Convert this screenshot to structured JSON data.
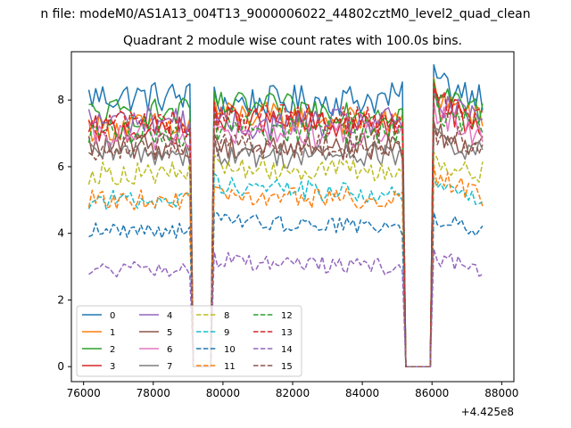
{
  "chart_data": {
    "type": "line",
    "suptitle": "n file: modeM0/AS1A13_004T13_9000006022_44802cztM0_level2_quad_clean",
    "title": "Quadrant 2 module wise count rates with 100.0s bins.",
    "xlabel": "",
    "ylabel": "",
    "x_offset_label": "+4.425e8",
    "xlim": [
      75650,
      88350
    ],
    "ylim": [
      -0.45,
      9.45
    ],
    "xticks": [
      76000,
      78000,
      80000,
      82000,
      84000,
      86000,
      88000
    ],
    "yticks": [
      0,
      2,
      4,
      6,
      8
    ],
    "grid": false,
    "legend": "lower-left",
    "bin_seconds": 100,
    "t_start": 76150,
    "t_end": 87450,
    "gaps": [
      [
        79150,
        79650
      ],
      [
        85250,
        85950
      ]
    ],
    "series": [
      {
        "name": "0",
        "style": "solid",
        "color": "#1f77b4",
        "level": 8.1,
        "after_gap1": 7.9,
        "after_gap2": 8.6
      },
      {
        "name": "1",
        "style": "solid",
        "color": "#ff7f0e",
        "level": 7.2,
        "after_gap1": 7.6,
        "after_gap2": 8.3
      },
      {
        "name": "2",
        "style": "solid",
        "color": "#2ca02c",
        "level": 7.6,
        "after_gap1": 7.8,
        "after_gap2": 8.2
      },
      {
        "name": "3",
        "style": "solid",
        "color": "#d62728",
        "level": 7.1,
        "after_gap1": 7.4,
        "after_gap2": 7.9
      },
      {
        "name": "4",
        "style": "solid",
        "color": "#9467bd",
        "level": 7.4,
        "after_gap1": 7.2,
        "after_gap2": 7.8
      },
      {
        "name": "5",
        "style": "solid",
        "color": "#8c564b",
        "level": 6.6,
        "after_gap1": 6.6,
        "after_gap2": 7.0
      },
      {
        "name": "6",
        "style": "solid",
        "color": "#e377c2",
        "level": 6.9,
        "after_gap1": 7.0,
        "after_gap2": 7.6
      },
      {
        "name": "7",
        "style": "solid",
        "color": "#7f7f7f",
        "level": 6.4,
        "after_gap1": 6.3,
        "after_gap2": 6.8
      },
      {
        "name": "8",
        "style": "dashed",
        "color": "#bcbd22",
        "level": 5.8,
        "after_gap1": 6.0,
        "after_gap2": 6.1
      },
      {
        "name": "9",
        "style": "dashed",
        "color": "#17becf",
        "level": 5.0,
        "after_gap1": 5.5,
        "after_gap2": 5.4
      },
      {
        "name": "10",
        "style": "dashed",
        "color": "#1f77b4",
        "level": 4.1,
        "after_gap1": 4.4,
        "after_gap2": 4.4
      },
      {
        "name": "11",
        "style": "dashed",
        "color": "#ff7f0e",
        "level": 5.0,
        "after_gap1": 5.1,
        "after_gap2": 5.8
      },
      {
        "name": "12",
        "style": "dashed",
        "color": "#2ca02c",
        "level": 7.0,
        "after_gap1": 7.2,
        "after_gap2": 7.8
      },
      {
        "name": "13",
        "style": "dashed",
        "color": "#d62728",
        "level": 7.3,
        "after_gap1": 7.5,
        "after_gap2": 8.1
      },
      {
        "name": "14",
        "style": "dashed",
        "color": "#9467bd",
        "level": 2.9,
        "after_gap1": 3.2,
        "after_gap2": 3.3
      },
      {
        "name": "15",
        "style": "dashed",
        "color": "#8c564b",
        "level": 6.6,
        "after_gap1": 6.6,
        "after_gap2": 7.0
      }
    ]
  }
}
